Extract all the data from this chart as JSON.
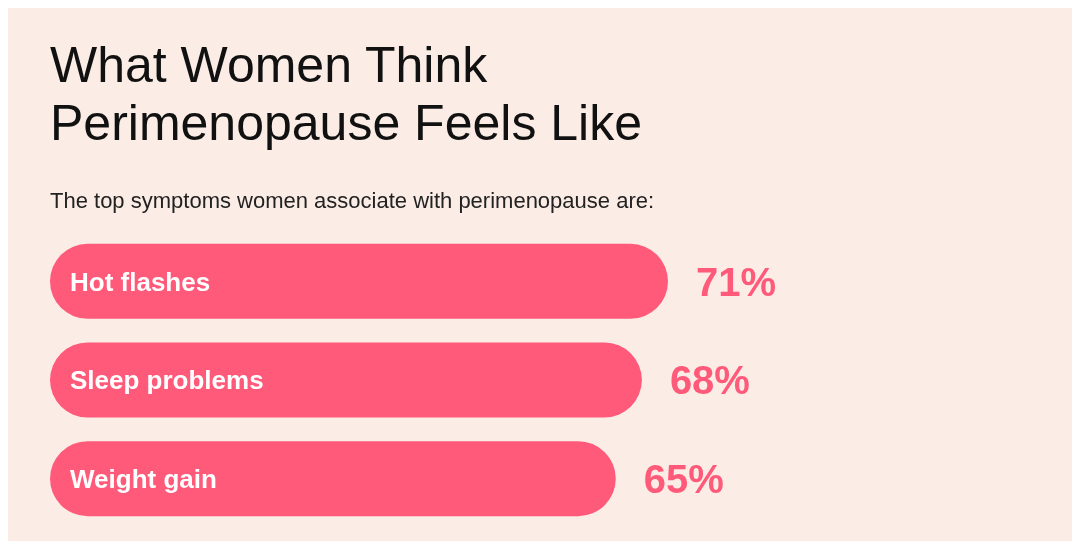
{
  "chart_data": {
    "type": "bar",
    "orientation": "horizontal",
    "title": "What Women Think Perimenopause Feels Like",
    "subtitle": "The top symptoms women associate with perimenopause are:",
    "categories": [
      "Hot flashes",
      "Sleep problems",
      "Weight gain"
    ],
    "values": [
      71,
      68,
      65
    ],
    "value_labels": [
      "71%",
      "68%",
      "65%"
    ],
    "color": "#ff5a79"
  }
}
